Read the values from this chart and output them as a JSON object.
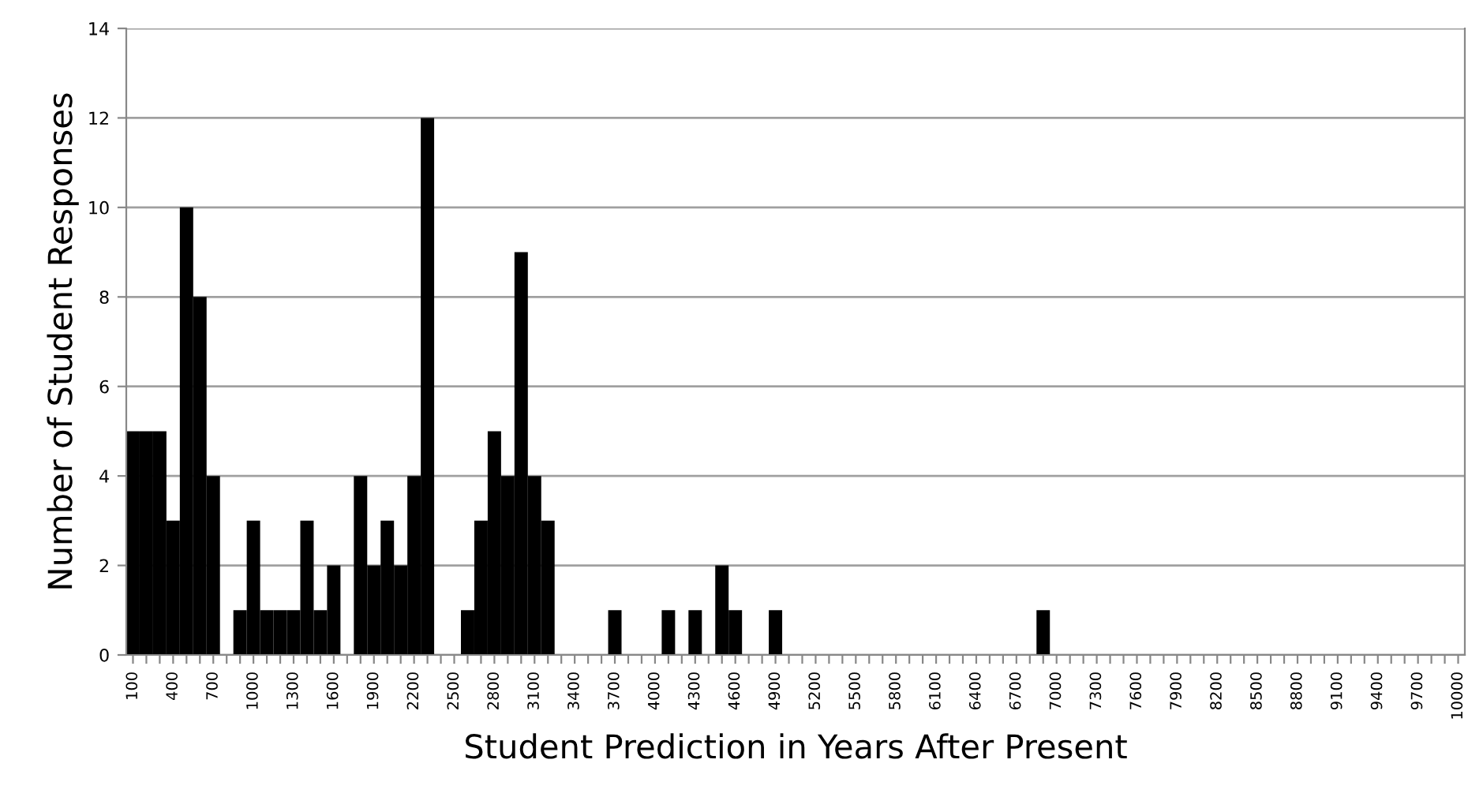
{
  "chart_data": {
    "type": "bar",
    "xlabel": "Student Prediction in Years After Present",
    "ylabel": "Number of Student Responses",
    "categories": [
      "100",
      null,
      null,
      "400",
      null,
      null,
      "700",
      null,
      null,
      "1000",
      null,
      null,
      "1300",
      null,
      null,
      "1600",
      null,
      null,
      "1900",
      null,
      null,
      "2200",
      null,
      null,
      "2500",
      null,
      null,
      "2800",
      null,
      null,
      "3100",
      null,
      null,
      "3400",
      null,
      null,
      "3700",
      null,
      null,
      "4000",
      null,
      null,
      "4300",
      null,
      null,
      "4600",
      null,
      null,
      "4900",
      null,
      null,
      "5200",
      null,
      null,
      "5500",
      null,
      null,
      "5800",
      null,
      null,
      "6100",
      null,
      null,
      "6400",
      null,
      null,
      "6700",
      null,
      null,
      "7000",
      null,
      null,
      "7300",
      null,
      null,
      "7600",
      null,
      null,
      "7900",
      null,
      null,
      "8200",
      null,
      null,
      "8500",
      null,
      null,
      "8800",
      null,
      null,
      "9100",
      null,
      null,
      "9400",
      null,
      null,
      "9700",
      null,
      null,
      "10000"
    ],
    "values": [
      5,
      5,
      5,
      3,
      10,
      8,
      4,
      0,
      1,
      3,
      1,
      1,
      1,
      3,
      1,
      2,
      0,
      4,
      2,
      3,
      2,
      4,
      12,
      0,
      0,
      1,
      3,
      5,
      4,
      9,
      4,
      3,
      0,
      0,
      0,
      0,
      1,
      0,
      0,
      0,
      1,
      0,
      1,
      0,
      2,
      1,
      0,
      0,
      1,
      0,
      0,
      0,
      0,
      0,
      0,
      0,
      0,
      0,
      0,
      0,
      0,
      0,
      0,
      0,
      0,
      0,
      0,
      0,
      1,
      0,
      0,
      0,
      0,
      0,
      0,
      0,
      0,
      0,
      0,
      0,
      0,
      0,
      0,
      0,
      0,
      0,
      0,
      0,
      0,
      0,
      0,
      0,
      0,
      0,
      0,
      0,
      0,
      0,
      0,
      0
    ],
    "color": "#000000",
    "ylim": [
      0,
      14
    ],
    "yticks": [
      0,
      2,
      4,
      6,
      8,
      10,
      12,
      14
    ],
    "grid": "y"
  }
}
